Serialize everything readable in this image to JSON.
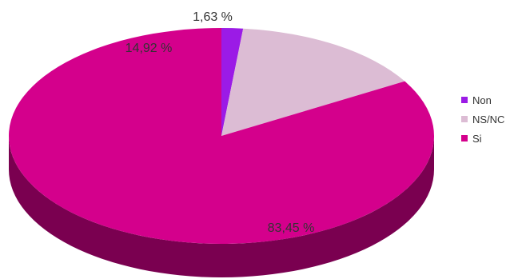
{
  "chart_data": {
    "type": "pie",
    "style": "3d",
    "categories": [
      "Non",
      "NS/NC",
      "Si"
    ],
    "values": [
      1.63,
      14.92,
      83.45
    ],
    "data_labels": [
      "1,63 %",
      "14,92 %",
      "83,45 %"
    ],
    "colors": {
      "Non": "#9b1be6",
      "NS/NC": "#dcbcd4",
      "Si": "#d4008c",
      "Si_side": "#7a0050"
    },
    "legend": {
      "placement": "right",
      "entries": [
        "Non",
        "NS/NC",
        "Si"
      ]
    },
    "title": "",
    "xlabel": "",
    "ylabel": ""
  }
}
